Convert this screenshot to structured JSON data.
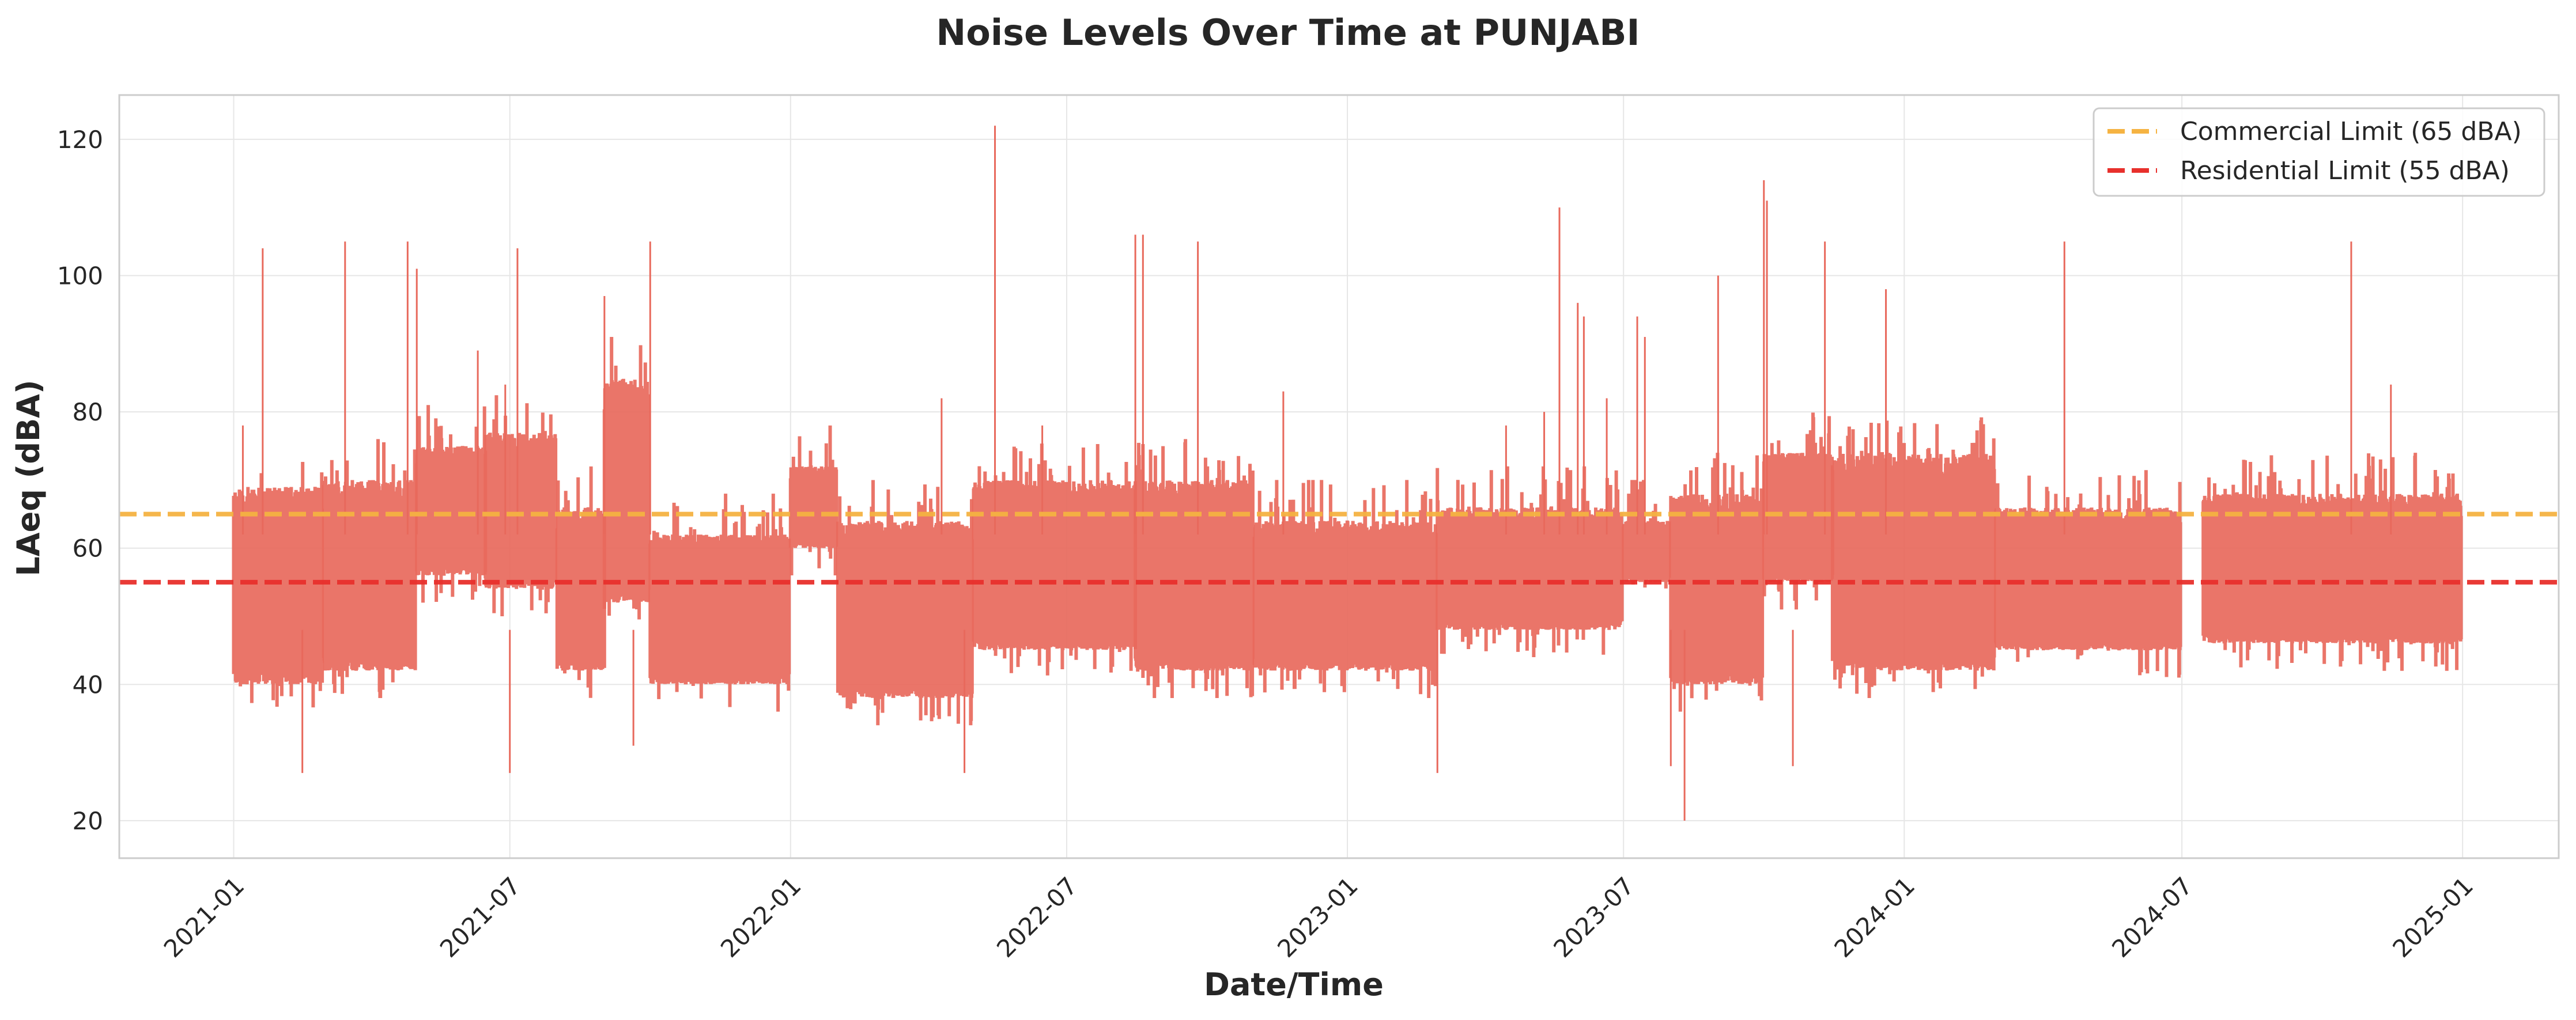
{
  "chart_data": {
    "type": "line",
    "title": "Noise Levels Over Time at PUNJABI",
    "xlabel": "Date/Time",
    "ylabel": "LAeq (dBA)",
    "xlim": [
      "2020-10-18",
      "2025-03-05"
    ],
    "ylim": [
      14.5,
      126.5
    ],
    "grid": true,
    "legend_position": "top-right",
    "x_ticks": [
      "2021-01",
      "2021-07",
      "2022-01",
      "2022-07",
      "2023-01",
      "2023-07",
      "2024-01",
      "2024-07",
      "2025-01"
    ],
    "y_ticks": [
      20,
      40,
      60,
      80,
      100,
      120
    ],
    "series": [
      {
        "color": "#e8695c",
        "note_sampling": "envelope per segment: date_start, date_end, low, high",
        "segments": [
          [
            "2021-01-01",
            "2021-02-28",
            40,
            69
          ],
          [
            "2021-03-01",
            "2021-04-30",
            42,
            70
          ],
          [
            "2021-05-01",
            "2021-06-15",
            56,
            75
          ],
          [
            "2021-06-15",
            "2021-07-31",
            54,
            77
          ],
          [
            "2021-08-01",
            "2021-09-01",
            42,
            66
          ],
          [
            "2021-09-01",
            "2021-09-30",
            52,
            85
          ],
          [
            "2021-10-01",
            "2021-12-31",
            40,
            62
          ],
          [
            "2022-01-01",
            "2022-01-31",
            60,
            72
          ],
          [
            "2022-02-01",
            "2022-04-30",
            38,
            64
          ],
          [
            "2022-05-01",
            "2022-08-15",
            45,
            70
          ],
          [
            "2022-08-15",
            "2022-10-31",
            42,
            70
          ],
          [
            "2022-11-01",
            "2023-02-28",
            42,
            64
          ],
          [
            "2023-03-01",
            "2023-06-30",
            48,
            66
          ],
          [
            "2023-07-01",
            "2023-07-31",
            55,
            64
          ],
          [
            "2023-08-01",
            "2023-09-30",
            40,
            68
          ],
          [
            "2023-10-01",
            "2023-11-15",
            55,
            74
          ],
          [
            "2023-11-15",
            "2024-02-29",
            42,
            74
          ],
          [
            "2024-03-01",
            "2024-06-30",
            45,
            66
          ],
          [
            "2024-07-15",
            "2024-12-31",
            46,
            68
          ]
        ],
        "gaps": [
          [
            "2021-07-31",
            "2021-08-03"
          ],
          [
            "2021-12-30",
            "2022-01-03"
          ],
          [
            "2024-07-01",
            "2024-07-12"
          ]
        ],
        "spikes": [
          [
            "2021-01-07",
            78
          ],
          [
            "2021-01-20",
            104
          ],
          [
            "2021-02-15",
            27
          ],
          [
            "2021-03-15",
            105
          ],
          [
            "2021-04-25",
            105
          ],
          [
            "2021-05-01",
            101
          ],
          [
            "2021-06-10",
            89
          ],
          [
            "2021-06-28",
            84
          ],
          [
            "2021-07-06",
            104
          ],
          [
            "2021-07-01",
            27
          ],
          [
            "2021-09-01",
            97
          ],
          [
            "2021-09-20",
            31
          ],
          [
            "2021-10-01",
            105
          ],
          [
            "2022-04-10",
            82
          ],
          [
            "2022-04-25",
            27
          ],
          [
            "2022-05-15",
            122
          ],
          [
            "2022-06-15",
            78
          ],
          [
            "2022-08-15",
            106
          ],
          [
            "2022-08-20",
            106
          ],
          [
            "2022-09-25",
            105
          ],
          [
            "2022-11-20",
            83
          ],
          [
            "2023-03-01",
            27
          ],
          [
            "2023-04-15",
            78
          ],
          [
            "2023-05-10",
            80
          ],
          [
            "2023-05-20",
            110
          ],
          [
            "2023-06-01",
            96
          ],
          [
            "2023-06-05",
            94
          ],
          [
            "2023-06-20",
            82
          ],
          [
            "2023-07-10",
            94
          ],
          [
            "2023-07-15",
            91
          ],
          [
            "2023-08-10",
            20
          ],
          [
            "2023-08-01",
            28
          ],
          [
            "2023-09-01",
            100
          ],
          [
            "2023-10-01",
            114
          ],
          [
            "2023-10-03",
            111
          ],
          [
            "2023-10-20",
            28
          ],
          [
            "2023-11-10",
            105
          ],
          [
            "2023-12-20",
            98
          ],
          [
            "2024-04-15",
            105
          ],
          [
            "2024-10-20",
            105
          ],
          [
            "2024-11-15",
            84
          ]
        ]
      }
    ],
    "reference_lines": [
      {
        "name": "Commercial Limit (65 dBA)",
        "y": 65,
        "color": "#f5b342",
        "style": "dashed"
      },
      {
        "name": "Residential Limit (55 dBA)",
        "y": 55,
        "color": "#e8302c",
        "style": "dashed"
      }
    ]
  }
}
